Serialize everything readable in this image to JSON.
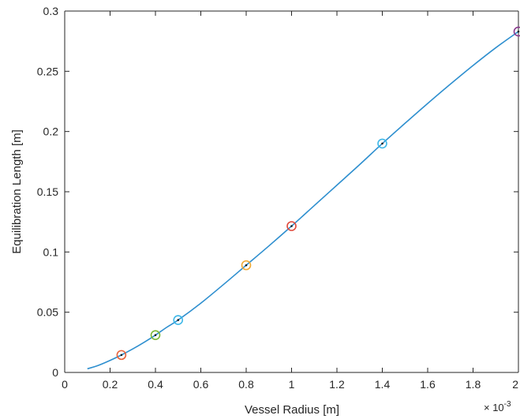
{
  "chart_data": {
    "type": "line",
    "title": "",
    "xlabel": "Vessel Radius [m]",
    "ylabel": "Equilibration Length [m]",
    "x_exponent_label": "× 10",
    "x_exponent_power": "-3",
    "xlim": [
      0,
      2
    ],
    "ylim": [
      0,
      0.3
    ],
    "x_ticks": [
      0,
      0.2,
      0.4,
      0.6,
      0.8,
      1,
      1.2,
      1.4,
      1.6,
      1.8,
      2
    ],
    "x_tick_labels": [
      "0",
      "0.2",
      "0.4",
      "0.6",
      "0.8",
      "1",
      "1.2",
      "1.4",
      "1.6",
      "1.8",
      "2"
    ],
    "y_ticks": [
      0,
      0.05,
      0.1,
      0.15,
      0.2,
      0.25,
      0.3
    ],
    "y_tick_labels": [
      "0",
      "0.05",
      "0.1",
      "0.15",
      "0.2",
      "0.25",
      "0.3"
    ],
    "grid": false,
    "line_color": "#2E8FCF",
    "curve": {
      "x": [
        0.1,
        0.15,
        0.2,
        0.25,
        0.3,
        0.35,
        0.4,
        0.45,
        0.5,
        0.6,
        0.7,
        0.8,
        0.9,
        1.0,
        1.1,
        1.2,
        1.3,
        1.4,
        1.5,
        1.6,
        1.7,
        1.8,
        1.9,
        2.0
      ],
      "y": [
        0.003,
        0.006,
        0.01,
        0.0145,
        0.0195,
        0.025,
        0.031,
        0.0375,
        0.0435,
        0.0575,
        0.073,
        0.089,
        0.105,
        0.1215,
        0.1385,
        0.1555,
        0.1725,
        0.19,
        0.2068,
        0.2233,
        0.2393,
        0.2548,
        0.2695,
        0.283
      ]
    },
    "markers": [
      {
        "x": 0.25,
        "y": 0.0145,
        "color": "#E8643C"
      },
      {
        "x": 0.4,
        "y": 0.031,
        "color": "#79B835"
      },
      {
        "x": 0.5,
        "y": 0.0435,
        "color": "#3FB8E8"
      },
      {
        "x": 0.8,
        "y": 0.089,
        "color": "#F0A830"
      },
      {
        "x": 1.0,
        "y": 0.1215,
        "color": "#E04A3C"
      },
      {
        "x": 1.4,
        "y": 0.19,
        "color": "#3FB8E8"
      },
      {
        "x": 2.0,
        "y": 0.283,
        "color": "#8A3A8E"
      }
    ]
  }
}
